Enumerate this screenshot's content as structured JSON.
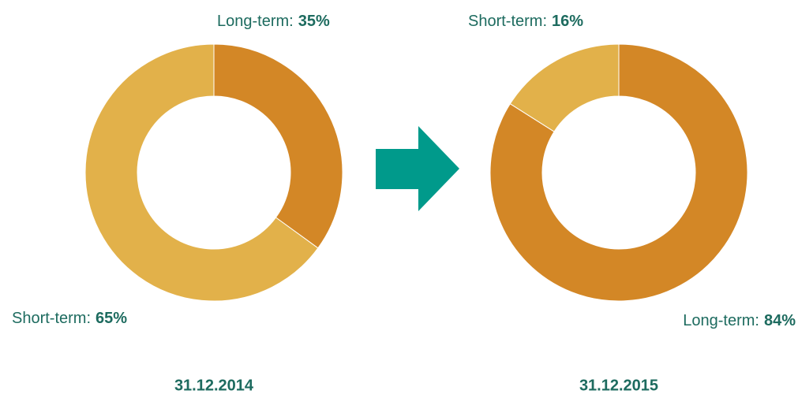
{
  "chart_data": [
    {
      "type": "pie",
      "title": "31.12.2014",
      "categories": [
        "Long-term:",
        "Short-term:"
      ],
      "values": [
        35,
        65
      ],
      "value_labels": [
        "35%",
        "65%"
      ],
      "colors": [
        "#d38726",
        "#e2b14a"
      ]
    },
    {
      "type": "pie",
      "title": "31.12.2015",
      "categories": [
        "Long-term:",
        "Short-term:"
      ],
      "values": [
        84,
        16
      ],
      "value_labels": [
        "84%",
        "16%"
      ],
      "colors": [
        "#d38726",
        "#e2b14a"
      ]
    }
  ]
}
